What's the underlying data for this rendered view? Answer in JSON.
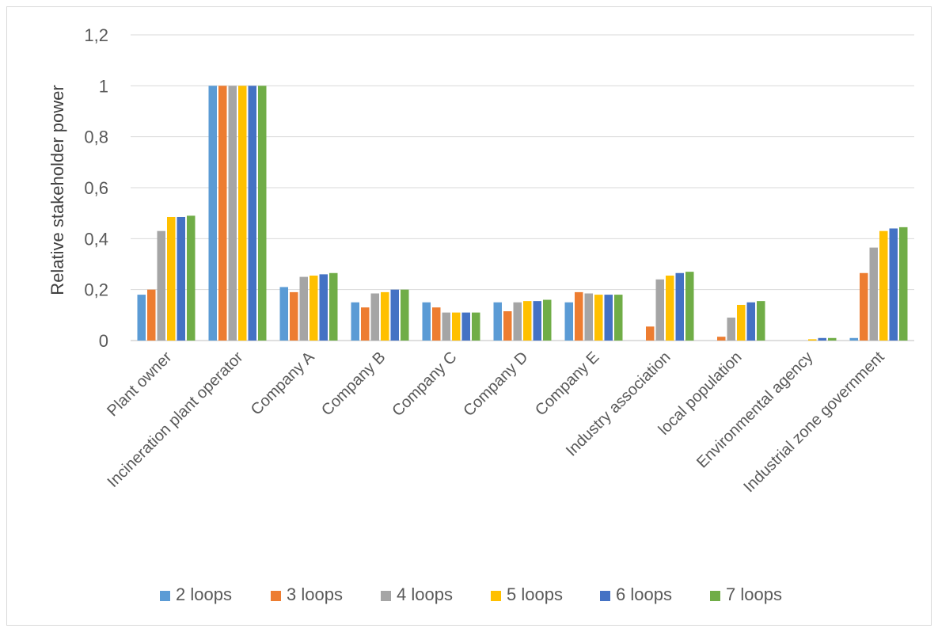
{
  "chart_data": {
    "type": "bar",
    "title": "",
    "xlabel": "",
    "ylabel": "Relative stakeholder power",
    "ylim": [
      0,
      1.2
    ],
    "yticks": [
      0,
      0.2,
      0.4,
      0.6,
      0.8,
      1,
      1.2
    ],
    "ytick_labels": [
      "0",
      "0,2",
      "0,4",
      "0,6",
      "0,8",
      "1",
      "1,2"
    ],
    "grid": true,
    "legend_position": "bottom",
    "categories": [
      "Plant owner",
      "Incineration plant operator",
      "Company A",
      "Company B",
      "Company C",
      "Company D",
      "Company E",
      "Industry association",
      "local population",
      "Environmental agency",
      "Industrial zone government"
    ],
    "series": [
      {
        "name": "2 loops",
        "color": "#5b9bd5",
        "values": [
          0.18,
          1.0,
          0.21,
          0.15,
          0.15,
          0.15,
          0.15,
          0.0,
          0.0,
          0.0,
          0.01
        ]
      },
      {
        "name": "3 loops",
        "color": "#ed7d31",
        "values": [
          0.2,
          1.0,
          0.19,
          0.13,
          0.13,
          0.115,
          0.19,
          0.055,
          0.015,
          0.0,
          0.265
        ]
      },
      {
        "name": "4 loops",
        "color": "#a5a5a5",
        "values": [
          0.43,
          1.0,
          0.25,
          0.185,
          0.11,
          0.15,
          0.185,
          0.24,
          0.09,
          0.0,
          0.365
        ]
      },
      {
        "name": "5 loops",
        "color": "#ffc000",
        "values": [
          0.485,
          1.0,
          0.255,
          0.19,
          0.11,
          0.155,
          0.18,
          0.255,
          0.14,
          0.005,
          0.43
        ]
      },
      {
        "name": "6 loops",
        "color": "#4472c4",
        "values": [
          0.485,
          1.0,
          0.26,
          0.2,
          0.11,
          0.155,
          0.18,
          0.265,
          0.15,
          0.01,
          0.44
        ]
      },
      {
        "name": "7 loops",
        "color": "#70ad47",
        "values": [
          0.49,
          1.0,
          0.265,
          0.2,
          0.11,
          0.16,
          0.18,
          0.27,
          0.155,
          0.01,
          0.445
        ]
      }
    ]
  }
}
